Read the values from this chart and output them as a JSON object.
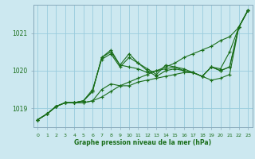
{
  "title": "Graphe pression niveau de la mer (hPa)",
  "bg_color": "#cce8f0",
  "grid_color": "#99ccdd",
  "line_color": "#1a6e1a",
  "spine_color": "#88aabb",
  "xlim": [
    -0.5,
    23.5
  ],
  "ylim": [
    1018.5,
    1021.75
  ],
  "yticks": [
    1019,
    1020,
    1021
  ],
  "xticks": [
    0,
    1,
    2,
    3,
    4,
    5,
    6,
    7,
    8,
    9,
    10,
    11,
    12,
    13,
    14,
    15,
    16,
    17,
    18,
    19,
    20,
    21,
    22,
    23
  ],
  "series": [
    [
      1018.7,
      1018.85,
      1019.05,
      1019.15,
      1019.15,
      1019.15,
      1019.2,
      1019.3,
      1019.45,
      1019.6,
      1019.7,
      1019.8,
      1019.9,
      1020.0,
      1020.1,
      1020.2,
      1020.35,
      1020.45,
      1020.55,
      1020.65,
      1020.8,
      1020.9,
      1021.15,
      1021.6
    ],
    [
      1018.7,
      1018.85,
      1019.05,
      1019.15,
      1019.15,
      1019.15,
      1019.2,
      1019.5,
      1019.65,
      1019.6,
      1019.6,
      1019.7,
      1019.75,
      1019.8,
      1019.85,
      1019.9,
      1019.95,
      1019.95,
      1019.85,
      1019.75,
      1019.8,
      1019.9,
      1021.15,
      1021.6
    ],
    [
      1018.7,
      1018.85,
      1019.05,
      1019.15,
      1019.15,
      1019.2,
      1019.45,
      1020.35,
      1020.5,
      1020.15,
      1020.1,
      1020.05,
      1019.95,
      1020.0,
      1020.05,
      1020.1,
      1020.05,
      1019.95,
      1019.85,
      1020.1,
      1020.0,
      1020.1,
      1021.15,
      1021.6
    ],
    [
      1018.7,
      1018.85,
      1019.05,
      1019.15,
      1019.15,
      1019.2,
      1019.45,
      1020.35,
      1020.55,
      1020.15,
      1020.45,
      1020.2,
      1020.05,
      1019.9,
      1020.15,
      1020.1,
      1020.0,
      1019.95,
      1019.85,
      1020.1,
      1020.05,
      1020.5,
      1021.15,
      1021.6
    ],
    [
      1018.7,
      1018.85,
      1019.05,
      1019.15,
      1019.15,
      1019.2,
      1019.5,
      1020.3,
      1020.45,
      1020.1,
      1020.35,
      1020.2,
      1020.0,
      1019.85,
      1020.0,
      1020.05,
      1020.0,
      1019.95,
      1019.85,
      1020.1,
      1020.0,
      1020.1,
      1021.15,
      1021.6
    ]
  ]
}
